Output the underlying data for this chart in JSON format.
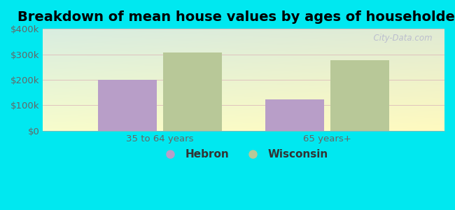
{
  "title": "Breakdown of mean house values by ages of householders",
  "categories": [
    "35 to 64 years",
    "65 years+"
  ],
  "series": {
    "Hebron": [
      200000,
      122000
    ],
    "Wisconsin": [
      307000,
      278000
    ]
  },
  "bar_colors": {
    "Hebron": "#b89ec8",
    "Wisconsin": "#b8c898"
  },
  "ylim": [
    0,
    400000
  ],
  "yticks": [
    0,
    100000,
    200000,
    300000,
    400000
  ],
  "ytick_labels": [
    "$0",
    "$100k",
    "$200k",
    "$300k",
    "$400k"
  ],
  "background_color": "#00e8f0",
  "title_fontsize": 14,
  "tick_fontsize": 9.5,
  "legend_fontsize": 11,
  "bar_width": 0.35,
  "watermark": "  City-Data.com"
}
